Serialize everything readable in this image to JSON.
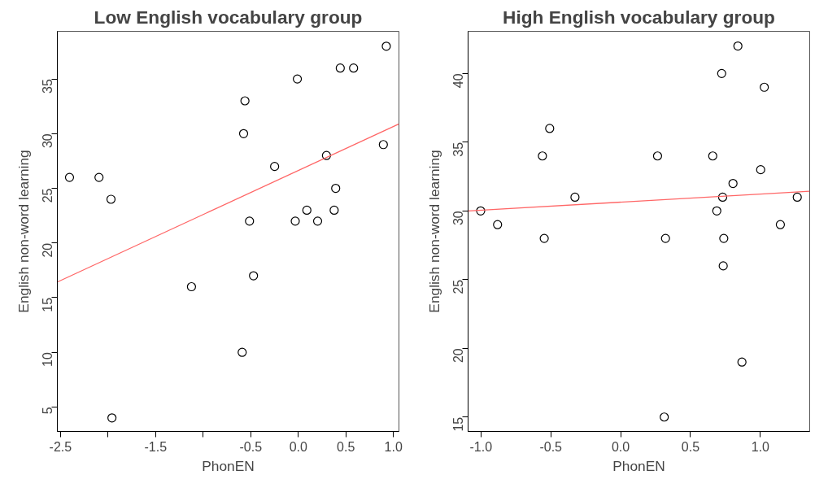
{
  "chart_data": [
    {
      "type": "scatter",
      "title": "Low English vocabulary group",
      "xlabel": "PhonEN",
      "ylabel": "English non-word learning",
      "xlim": [
        -2.533,
        1.058
      ],
      "ylim": [
        2.76,
        39.36
      ],
      "xticks": [
        {
          "value": -2.5,
          "label": "-2.5"
        },
        {
          "value": -2,
          "label": null
        },
        {
          "value": -1.5,
          "label": "-1.5"
        },
        {
          "value": -1,
          "label": null
        },
        {
          "value": -0.5,
          "label": "-0.5"
        },
        {
          "value": 0,
          "label": "0.0"
        },
        {
          "value": 0.5,
          "label": "0.5"
        },
        {
          "value": 1,
          "label": "1.0"
        }
      ],
      "yticks": [
        5,
        10,
        15,
        20,
        25,
        30,
        35
      ],
      "grid": false,
      "series": [
        {
          "marker": "circle",
          "color": "#000000",
          "x": [
            -2.405,
            -2.095,
            -1.969,
            -1.959,
            -1.123,
            -0.59,
            -0.575,
            -0.561,
            -0.513,
            -0.471,
            -0.249,
            -0.032,
            -0.01,
            0.09,
            0.203,
            0.296,
            0.377,
            0.393,
            0.441,
            0.581,
            0.894,
            0.925
          ],
          "values": [
            26,
            26,
            24,
            4,
            16,
            10,
            30,
            33,
            22,
            17,
            27,
            22,
            35,
            23,
            22,
            28,
            23,
            25,
            36,
            36,
            29,
            38
          ]
        },
        {
          "type": "line",
          "color": "#ff6666",
          "x": [
            -2.533,
            1.058
          ],
          "values": [
            16.43,
            30.89
          ]
        }
      ]
    },
    {
      "type": "scatter",
      "title": "High English vocabulary group",
      "xlabel": "PhonEN",
      "ylabel": "English non-word learning",
      "xlim": [
        -1.092,
        1.353
      ],
      "ylim": [
        13.95,
        43.07
      ],
      "xticks": [
        {
          "value": -1,
          "label": "-1.0"
        },
        {
          "value": -0.5,
          "label": "-0.5"
        },
        {
          "value": 0,
          "label": "0.0"
        },
        {
          "value": 0.5,
          "label": "0.5"
        },
        {
          "value": 1,
          "label": "1.0"
        }
      ],
      "yticks": [
        15,
        20,
        25,
        30,
        35,
        40
      ],
      "grid": false,
      "series": [
        {
          "marker": "circle",
          "color": "#000000",
          "x": [
            -1.002,
            -0.881,
            -0.56,
            -0.547,
            -0.508,
            -0.327,
            0.264,
            0.321,
            0.312,
            0.659,
            0.688,
            0.723,
            0.73,
            0.738,
            0.734,
            0.804,
            0.839,
            0.868,
            1.002,
            1.028,
            1.143,
            1.264
          ],
          "values": [
            30,
            29,
            34,
            28,
            36,
            31,
            34,
            28,
            15,
            34,
            30,
            40,
            31,
            28,
            26,
            32,
            42,
            19,
            33,
            39,
            29,
            31
          ]
        },
        {
          "type": "line",
          "color": "#ff6666",
          "x": [
            -1.092,
            1.353
          ],
          "values": [
            30.0,
            31.43
          ]
        }
      ]
    }
  ]
}
